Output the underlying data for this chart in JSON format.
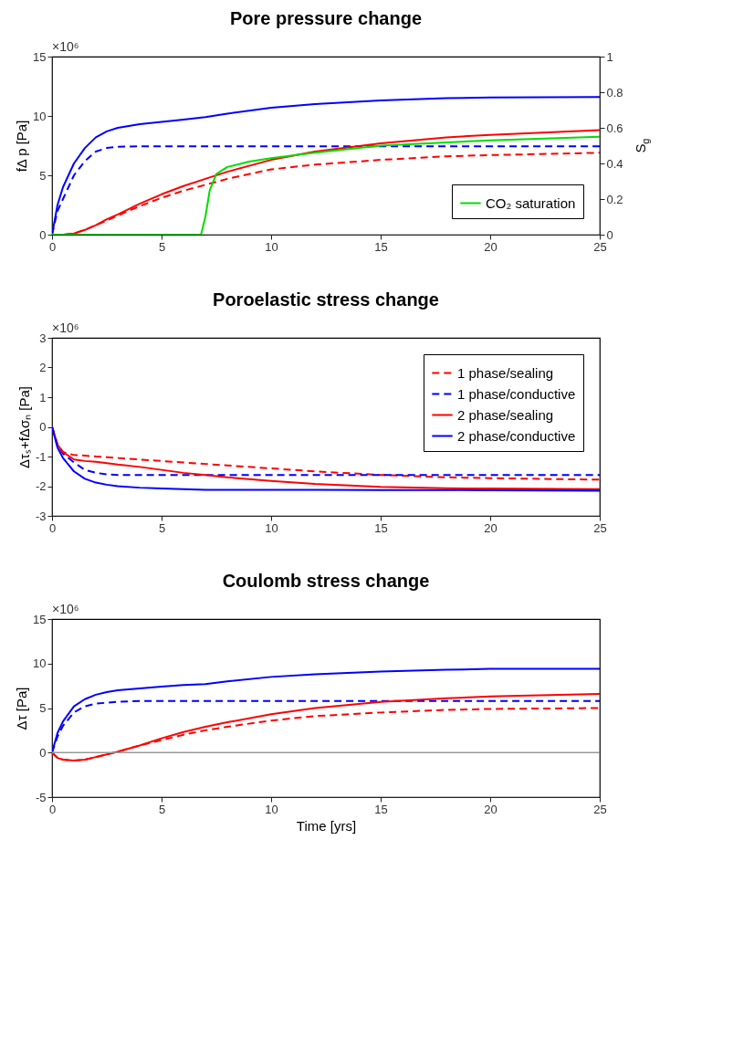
{
  "chart_data": [
    {
      "type": "line",
      "title": "Pore pressure change",
      "ylabel": "fΔ p [Pa]",
      "y2label": "S$_{g}$",
      "annotations": [
        "×10⁶"
      ],
      "x": [
        0,
        0.25,
        0.5,
        1,
        1.5,
        2,
        2.5,
        3,
        4,
        5,
        6,
        7,
        8,
        10,
        12,
        15,
        18,
        20,
        25
      ],
      "xlim": [
        0,
        25
      ],
      "xticks": [
        0,
        5,
        10,
        15,
        20,
        25
      ],
      "ylim": [
        0,
        15
      ],
      "yticks": [
        0,
        5,
        10,
        15
      ],
      "y2lim": [
        0,
        1
      ],
      "y2ticks": [
        0,
        0.2,
        0.4,
        0.6,
        0.8,
        1
      ],
      "grid": false,
      "legend": "bottom right",
      "series": [
        {
          "color": "#0000ff",
          "line_style": "solid",
          "values": [
            0,
            2.5,
            4,
            6,
            7.3,
            8.2,
            8.7,
            9.0,
            9.3,
            9.5,
            9.7,
            9.9,
            10.2,
            10.7,
            11.0,
            11.3,
            11.5,
            11.55,
            11.6
          ]
        },
        {
          "color": "#0000ff",
          "line_style": "dashed",
          "values": [
            0,
            2,
            3,
            5,
            6.2,
            7,
            7.3,
            7.4,
            7.45,
            7.45,
            7.45,
            7.45,
            7.45,
            7.45,
            7.45,
            7.45,
            7.45,
            7.45,
            7.45
          ]
        },
        {
          "color": "#ff0000",
          "line_style": "solid",
          "values": [
            0,
            0,
            0,
            0.1,
            0.4,
            0.8,
            1.3,
            1.7,
            2.6,
            3.4,
            4.1,
            4.7,
            5.3,
            6.3,
            7.0,
            7.7,
            8.2,
            8.4,
            8.8
          ]
        },
        {
          "color": "#ff0000",
          "line_style": "dashed",
          "values": [
            0,
            0,
            0,
            0.1,
            0.4,
            0.8,
            1.2,
            1.6,
            2.4,
            3.1,
            3.7,
            4.2,
            4.7,
            5.5,
            5.9,
            6.3,
            6.6,
            6.7,
            6.9
          ]
        },
        {
          "name": "CO₂ saturation",
          "color": "#00dd00",
          "line_style": "solid",
          "axis": "y2",
          "x": [
            0,
            6.8,
            7.0,
            7.2,
            7.5,
            8,
            9,
            10,
            12,
            15,
            20,
            25
          ],
          "values": [
            0,
            0,
            0.1,
            0.25,
            0.34,
            0.38,
            0.41,
            0.43,
            0.46,
            0.5,
            0.53,
            0.55
          ]
        }
      ]
    },
    {
      "type": "line",
      "title": "Poroelastic stress change",
      "ylabel": "Δτₛ+fΔσₙ [Pa]",
      "annotations": [
        "×10⁶"
      ],
      "x": [
        0,
        0.25,
        0.5,
        1,
        1.5,
        2,
        2.5,
        3,
        4,
        5,
        6,
        7,
        8,
        10,
        12,
        15,
        18,
        20,
        25
      ],
      "xlim": [
        0,
        25
      ],
      "xticks": [
        0,
        5,
        10,
        15,
        20,
        25
      ],
      "ylim": [
        -3,
        3
      ],
      "yticks": [
        -3,
        -2,
        -1,
        0,
        1,
        2,
        3
      ],
      "grid": false,
      "legend": "top right",
      "series": [
        {
          "name": "1 phase/sealing",
          "color": "#ff0000",
          "line_style": "dashed",
          "values": [
            0,
            -0.6,
            -0.85,
            -0.95,
            -0.97,
            -1.0,
            -1.02,
            -1.05,
            -1.1,
            -1.15,
            -1.2,
            -1.25,
            -1.3,
            -1.4,
            -1.5,
            -1.62,
            -1.7,
            -1.73,
            -1.78
          ]
        },
        {
          "name": "1 phase/conductive",
          "color": "#0000ff",
          "line_style": "dashed",
          "values": [
            0,
            -0.6,
            -0.9,
            -1.2,
            -1.45,
            -1.55,
            -1.6,
            -1.62,
            -1.62,
            -1.62,
            -1.62,
            -1.62,
            -1.62,
            -1.62,
            -1.62,
            -1.62,
            -1.62,
            -1.62,
            -1.62
          ]
        },
        {
          "name": "2 phase/sealing",
          "color": "#ff0000",
          "line_style": "solid",
          "values": [
            0,
            -0.6,
            -0.85,
            -1.1,
            -1.15,
            -1.18,
            -1.22,
            -1.27,
            -1.35,
            -1.45,
            -1.55,
            -1.62,
            -1.7,
            -1.82,
            -1.92,
            -2.02,
            -2.07,
            -2.08,
            -2.1
          ]
        },
        {
          "name": "2 phase/conductive",
          "color": "#0000ff",
          "line_style": "solid",
          "values": [
            0,
            -0.7,
            -1.05,
            -1.5,
            -1.75,
            -1.88,
            -1.95,
            -2.0,
            -2.05,
            -2.08,
            -2.1,
            -2.12,
            -2.12,
            -2.12,
            -2.12,
            -2.13,
            -2.13,
            -2.14,
            -2.15
          ]
        }
      ]
    },
    {
      "type": "line",
      "title": "Coulomb stress change",
      "ylabel": "Δτ [Pa]",
      "xlabel": "Time [yrs]",
      "annotations": [
        "×10⁶"
      ],
      "x": [
        0,
        0.25,
        0.5,
        1,
        1.5,
        2,
        2.5,
        3,
        4,
        5,
        6,
        7,
        8,
        10,
        12,
        15,
        18,
        20,
        25
      ],
      "xlim": [
        0,
        25
      ],
      "xticks": [
        0,
        5,
        10,
        15,
        20,
        25
      ],
      "ylim": [
        -5,
        15
      ],
      "yticks": [
        -5,
        0,
        5,
        10,
        15
      ],
      "grid": false,
      "ref_lines": [
        {
          "axis": "y",
          "value": 0,
          "color": "#999999"
        }
      ],
      "series": [
        {
          "color": "#0000ff",
          "line_style": "solid",
          "values": [
            0,
            2.2,
            3.5,
            5.2,
            6.0,
            6.5,
            6.8,
            7.0,
            7.2,
            7.4,
            7.6,
            7.7,
            8.0,
            8.5,
            8.8,
            9.1,
            9.3,
            9.4,
            9.4
          ]
        },
        {
          "color": "#0000ff",
          "line_style": "dashed",
          "values": [
            0,
            1.8,
            3,
            4.5,
            5.2,
            5.5,
            5.6,
            5.7,
            5.8,
            5.8,
            5.8,
            5.8,
            5.8,
            5.8,
            5.8,
            5.8,
            5.8,
            5.8,
            5.8
          ]
        },
        {
          "color": "#ff0000",
          "line_style": "solid",
          "values": [
            0,
            -0.6,
            -0.8,
            -0.9,
            -0.8,
            -0.5,
            -0.2,
            0.1,
            0.8,
            1.6,
            2.3,
            2.9,
            3.4,
            4.3,
            5.0,
            5.7,
            6.1,
            6.3,
            6.6
          ]
        },
        {
          "color": "#ff0000",
          "line_style": "dashed",
          "values": [
            0,
            -0.6,
            -0.8,
            -0.9,
            -0.8,
            -0.5,
            -0.2,
            0.1,
            0.8,
            1.4,
            2.0,
            2.5,
            2.9,
            3.6,
            4.1,
            4.5,
            4.8,
            4.9,
            5.0
          ]
        }
      ]
    }
  ]
}
